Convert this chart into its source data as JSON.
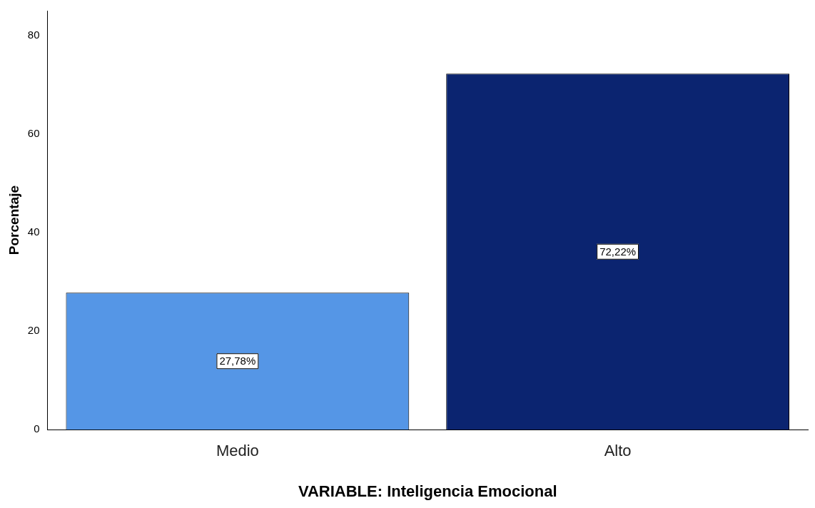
{
  "chart_data": {
    "type": "bar",
    "xlabel": "VARIABLE: Inteligencia Emocional",
    "ylabel": "Porcentaje",
    "categories": [
      "Medio",
      "Alto"
    ],
    "values": [
      27.78,
      72.22
    ],
    "colors": [
      "#5596e6",
      "#0b2470"
    ],
    "value_labels": [
      "27,78%",
      "72,22%"
    ],
    "ylim": [
      0,
      85
    ],
    "yticks": [
      0,
      20,
      40,
      60,
      80
    ],
    "grid": false,
    "legend": false
  }
}
